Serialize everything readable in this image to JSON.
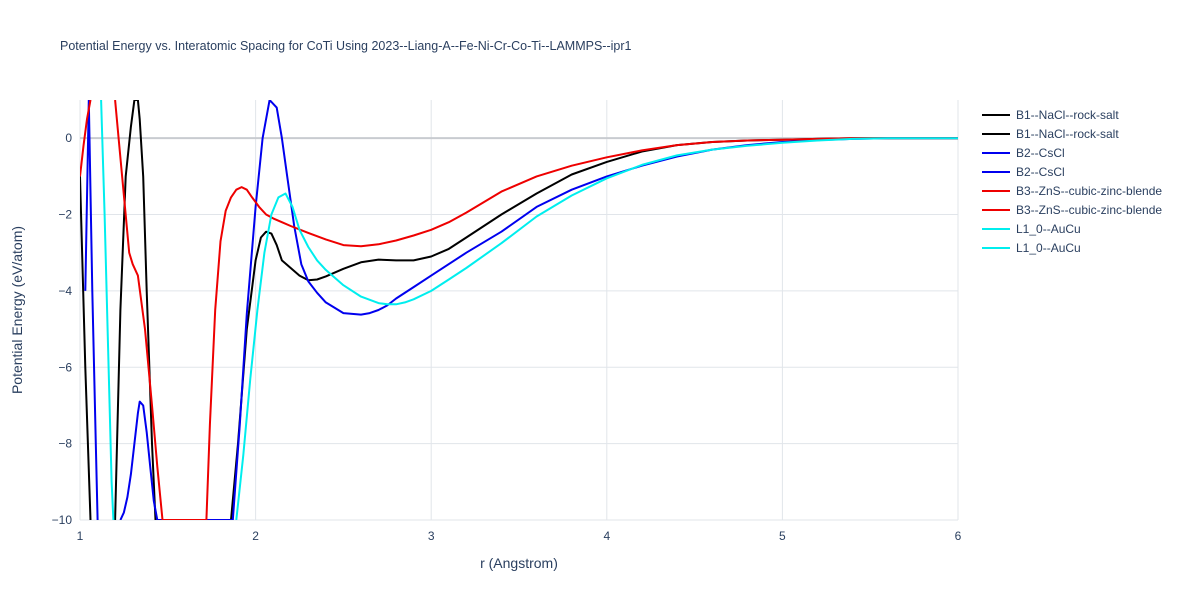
{
  "chart_data": {
    "type": "line",
    "title": "Potential Energy vs. Interatomic Spacing for CoTi Using 2023--Liang-A--Fe-Ni-Cr-Co-Ti--LAMMPS--ipr1",
    "xlabel": "r (Angstrom)",
    "ylabel": "Potential Energy (eV/atom)",
    "xlim": [
      1,
      6
    ],
    "ylim": [
      -10,
      1
    ],
    "x_ticks": [
      1,
      2,
      3,
      4,
      5,
      6
    ],
    "y_ticks": [
      0,
      -2,
      -4,
      -6,
      -8,
      -10
    ],
    "x_tick_labels": [
      "1",
      "2",
      "3",
      "4",
      "5",
      "6"
    ],
    "y_tick_labels": [
      "0",
      "−2",
      "−4",
      "−6",
      "−8",
      "−10"
    ],
    "grid": true,
    "legend_position": "right",
    "series": [
      {
        "name": "B1--NaCl--rock-salt",
        "color": "#000000",
        "x": [
          1.0,
          1.03,
          1.06
        ],
        "y": [
          -1.0,
          -6.0,
          -10.0
        ]
      },
      {
        "name": "B1--NaCl--rock-salt",
        "color": "#000000",
        "x": [
          1.2,
          1.23,
          1.26,
          1.29,
          1.31,
          1.33,
          1.34,
          1.36,
          1.38,
          1.41,
          1.43,
          1.86,
          1.9,
          1.95,
          2.0,
          2.03,
          2.06,
          2.09,
          2.12,
          2.15,
          2.2,
          2.25,
          2.3,
          2.35,
          2.4,
          2.5,
          2.6,
          2.7,
          2.8,
          2.9,
          3.0,
          3.1,
          3.2,
          3.4,
          3.6,
          3.8,
          4.0,
          4.2,
          4.4,
          4.6,
          4.8,
          5.0,
          5.2,
          5.4,
          5.6,
          5.8,
          6.0
        ],
        "y": [
          -10.0,
          -4.5,
          -1.0,
          0.3,
          1.0,
          1.0,
          0.5,
          -1.0,
          -4.0,
          -8.0,
          -10.0,
          -10.0,
          -8.0,
          -5.0,
          -3.2,
          -2.6,
          -2.45,
          -2.5,
          -2.8,
          -3.2,
          -3.4,
          -3.6,
          -3.72,
          -3.7,
          -3.62,
          -3.42,
          -3.25,
          -3.18,
          -3.2,
          -3.2,
          -3.1,
          -2.9,
          -2.6,
          -2.0,
          -1.45,
          -0.95,
          -0.62,
          -0.35,
          -0.18,
          -0.1,
          -0.06,
          -0.04,
          -0.02,
          0.0,
          0.0,
          0.0,
          0.0
        ]
      },
      {
        "name": "B2--CsCl",
        "color": "#0000ee",
        "x": [
          1.03,
          1.05,
          1.07,
          1.09,
          1.1
        ],
        "y": [
          -4.0,
          1.0,
          -4.0,
          -8.0,
          -10.0
        ]
      },
      {
        "name": "B2--CsCl",
        "color": "#0000ee",
        "x": [
          1.23,
          1.25,
          1.27,
          1.29,
          1.31,
          1.33,
          1.34,
          1.36,
          1.38,
          1.4,
          1.42,
          1.44,
          1.87,
          1.91,
          1.95,
          2.0,
          2.04,
          2.08,
          2.12,
          2.15,
          2.18,
          2.22,
          2.26,
          2.3,
          2.35,
          2.4,
          2.5,
          2.6,
          2.65,
          2.7,
          2.75,
          2.8,
          2.9,
          3.0,
          3.2,
          3.4,
          3.6,
          3.8,
          4.0,
          4.2,
          4.4,
          4.6,
          4.8,
          5.0,
          5.2,
          5.4,
          5.6,
          5.8,
          6.0
        ],
        "y": [
          -10.0,
          -9.8,
          -9.4,
          -8.8,
          -8.0,
          -7.2,
          -6.9,
          -7.0,
          -7.7,
          -8.6,
          -9.5,
          -10.0,
          -10.0,
          -7.5,
          -4.6,
          -1.8,
          0.0,
          1.0,
          0.8,
          0.0,
          -1.0,
          -2.3,
          -3.3,
          -3.75,
          -4.05,
          -4.3,
          -4.58,
          -4.62,
          -4.58,
          -4.5,
          -4.38,
          -4.2,
          -3.9,
          -3.6,
          -3.0,
          -2.45,
          -1.8,
          -1.35,
          -1.0,
          -0.72,
          -0.48,
          -0.3,
          -0.18,
          -0.1,
          -0.05,
          -0.02,
          0.0,
          0.0,
          0.0
        ]
      },
      {
        "name": "B3--ZnS--cubic-zinc-blende",
        "color": "#ee0000",
        "x": [
          1.0,
          1.02,
          1.04,
          1.06
        ],
        "y": [
          -1.0,
          -0.2,
          0.5,
          1.0
        ]
      },
      {
        "name": "B3--ZnS--cubic-zinc-blende",
        "color": "#ee0000",
        "x": [
          1.2,
          1.22,
          1.25,
          1.28,
          1.3,
          1.33,
          1.37,
          1.41,
          1.44,
          1.47,
          1.72,
          1.74,
          1.77,
          1.8,
          1.83,
          1.86,
          1.89,
          1.92,
          1.95,
          1.98,
          2.02,
          2.06,
          2.1,
          2.15,
          2.2,
          2.3,
          2.4,
          2.5,
          2.6,
          2.7,
          2.8,
          2.9,
          3.0,
          3.1,
          3.2,
          3.4,
          3.6,
          3.8,
          4.0,
          4.2,
          4.4,
          4.6,
          4.8,
          5.0,
          5.2,
          5.4,
          5.6,
          5.8,
          6.0
        ],
        "y": [
          1.0,
          0.0,
          -1.5,
          -3.0,
          -3.3,
          -3.6,
          -5.0,
          -7.0,
          -8.6,
          -10.0,
          -10.0,
          -7.5,
          -4.5,
          -2.7,
          -1.9,
          -1.55,
          -1.35,
          -1.28,
          -1.35,
          -1.55,
          -1.8,
          -2.0,
          -2.1,
          -2.2,
          -2.3,
          -2.48,
          -2.65,
          -2.8,
          -2.83,
          -2.78,
          -2.68,
          -2.55,
          -2.4,
          -2.2,
          -1.95,
          -1.4,
          -1.0,
          -0.72,
          -0.5,
          -0.32,
          -0.18,
          -0.1,
          -0.06,
          -0.04,
          -0.02,
          0.0,
          0.0,
          0.0,
          0.0
        ]
      },
      {
        "name": "L1_0--AuCu",
        "color": "#00eeee",
        "x": [
          1.12,
          1.14,
          1.16,
          1.18,
          1.19
        ],
        "y": [
          1.0,
          -2.0,
          -5.5,
          -9.0,
          -10.0
        ]
      },
      {
        "name": "L1_0--AuCu",
        "color": "#00eeee",
        "x": [
          1.89,
          1.93,
          1.97,
          2.01,
          2.05,
          2.09,
          2.13,
          2.17,
          2.21,
          2.25,
          2.3,
          2.35,
          2.4,
          2.5,
          2.6,
          2.7,
          2.75,
          2.8,
          2.85,
          2.9,
          3.0,
          3.1,
          3.2,
          3.4,
          3.6,
          3.8,
          4.0,
          4.2,
          4.4,
          4.6,
          4.8,
          5.0,
          5.2,
          5.4,
          5.6,
          5.8,
          6.0
        ],
        "y": [
          -10.0,
          -8.3,
          -6.3,
          -4.5,
          -3.0,
          -2.0,
          -1.55,
          -1.45,
          -1.8,
          -2.4,
          -2.85,
          -3.2,
          -3.45,
          -3.85,
          -4.15,
          -4.32,
          -4.35,
          -4.35,
          -4.3,
          -4.22,
          -4.0,
          -3.7,
          -3.4,
          -2.75,
          -2.05,
          -1.5,
          -1.05,
          -0.7,
          -0.45,
          -0.3,
          -0.2,
          -0.12,
          -0.06,
          -0.02,
          0.0,
          0.0,
          0.0
        ]
      }
    ]
  }
}
